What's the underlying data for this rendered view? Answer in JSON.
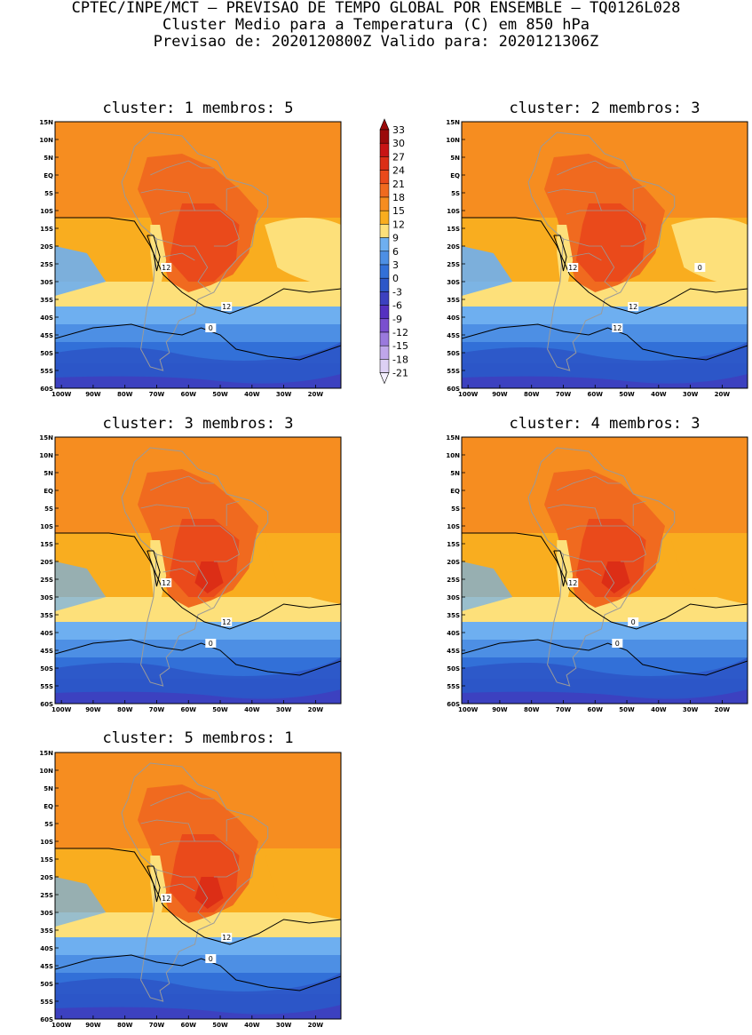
{
  "header": {
    "line1": "CPTEC/INPE/MCT – PREVISAO DE TEMPO GLOBAL POR ENSEMBLE – TQ0126L028",
    "line2": "Cluster Medio para a Temperatura (C) em 850 hPa",
    "line3": "Previsao de: 2020120800Z   Valido para: 2020121306Z"
  },
  "axes": {
    "lat_labels": [
      "15N",
      "10N",
      "5N",
      "EQ",
      "5S",
      "10S",
      "15S",
      "20S",
      "25S",
      "30S",
      "35S",
      "40S",
      "45S",
      "50S",
      "55S",
      "60S"
    ],
    "lon_labels": [
      "100W",
      "90W",
      "80W",
      "70W",
      "60W",
      "50W",
      "40W",
      "30W",
      "20W"
    ]
  },
  "colorbar": {
    "labels": [
      "33",
      "30",
      "27",
      "24",
      "21",
      "18",
      "15",
      "12",
      "9",
      "6",
      "3",
      "0",
      "-3",
      "-6",
      "-9",
      "-12",
      "-15",
      "-18",
      "-21"
    ],
    "colors": [
      "#9b0a0a",
      "#c81414",
      "#dc2e16",
      "#ea4a1b",
      "#f06a1f",
      "#f68d20",
      "#f9ad1f",
      "#fde07a",
      "#6eaff0",
      "#4d8fe4",
      "#3270d8",
      "#2c57c8",
      "#3c41c0",
      "#5531c0",
      "#7a4fcf",
      "#9a79dd",
      "#bfa6ea",
      "#ddd0f4"
    ]
  },
  "panels": [
    {
      "title": "cluster: 1   membros: 5",
      "labels": [
        "12",
        "12",
        "0"
      ]
    },
    {
      "title": "cluster: 2   membros: 3",
      "labels": [
        "12",
        "12",
        "12",
        "0"
      ]
    },
    {
      "title": "cluster: 3   membros: 3",
      "labels": [
        "12",
        "12",
        "0"
      ]
    },
    {
      "title": "cluster: 4   membros: 3",
      "labels": [
        "12",
        "0",
        "0"
      ]
    },
    {
      "title": "cluster: 5   membros: 1",
      "labels": [
        "12",
        "12",
        "0"
      ]
    }
  ]
}
